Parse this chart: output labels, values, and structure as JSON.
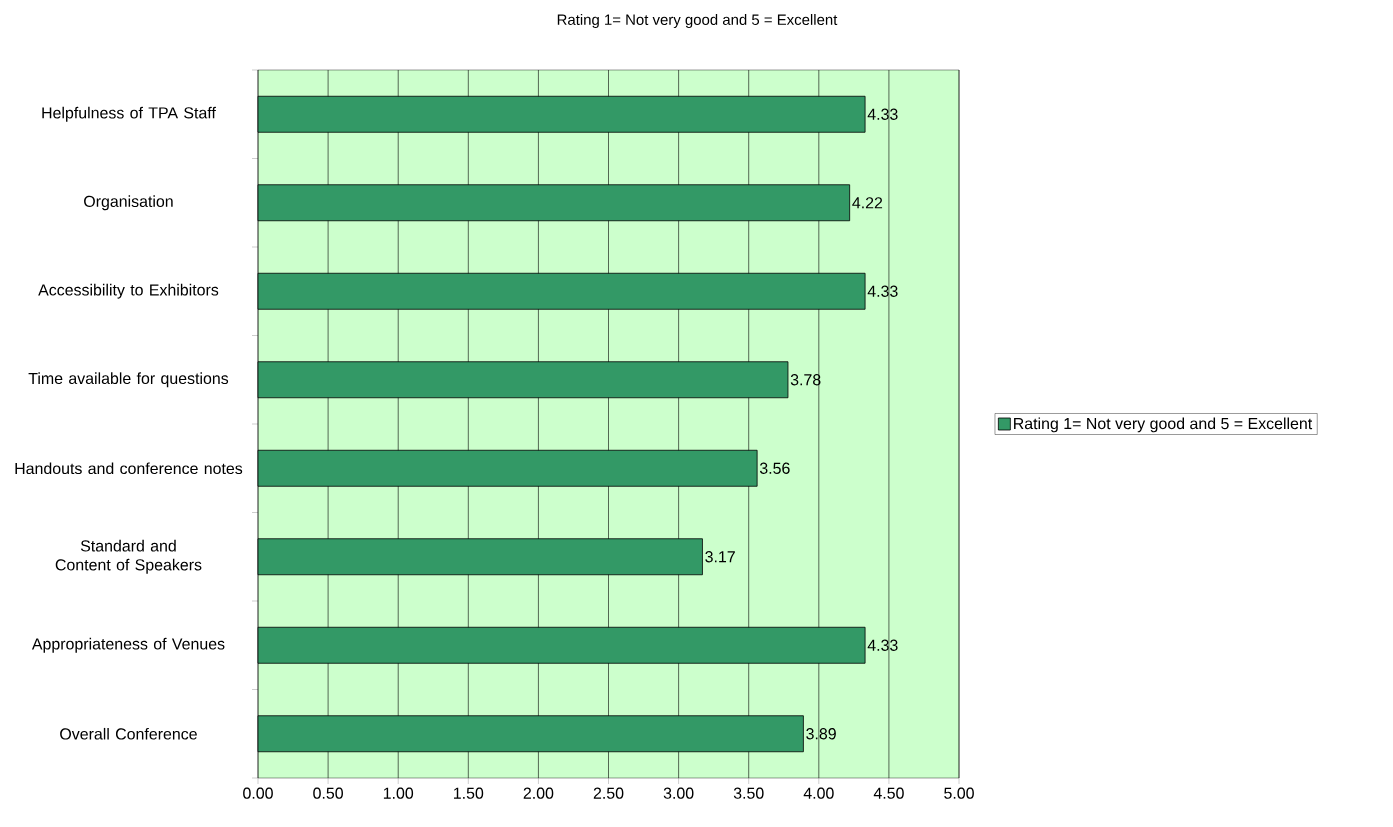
{
  "chart_data": {
    "type": "bar",
    "orientation": "horizontal",
    "title": "Rating 1= Not very good and 5 = Excellent",
    "categories": [
      "Helpfulness of TPA Staff",
      "Organisation",
      "Accessibility to Exhibitors",
      "Time available for questions",
      "Handouts and conference notes",
      "Standard and Content of Speakers",
      "Appropriateness of Venues",
      "Overall Conference"
    ],
    "series": [
      {
        "name": "Rating 1= Not very good and 5 = Excellent",
        "color": "#339966",
        "values": [
          4.33,
          4.22,
          4.33,
          3.78,
          3.56,
          3.17,
          4.33,
          3.89
        ]
      }
    ],
    "xlim": [
      0,
      5
    ],
    "xticks": [
      {
        "value": 0,
        "label": "0.00"
      },
      {
        "value": 0.5,
        "label": "0.50"
      },
      {
        "value": 1,
        "label": "1.00"
      },
      {
        "value": 1.5,
        "label": "1.50"
      },
      {
        "value": 2,
        "label": "2.00"
      },
      {
        "value": 2.5,
        "label": "2.50"
      },
      {
        "value": 3,
        "label": "3.00"
      },
      {
        "value": 3.5,
        "label": "3.50"
      },
      {
        "value": 4,
        "label": "4.00"
      },
      {
        "value": 4.5,
        "label": "4.50"
      },
      {
        "value": 5,
        "label": "5.00"
      }
    ],
    "grid": "x",
    "legend": "right",
    "data_labels": true
  }
}
